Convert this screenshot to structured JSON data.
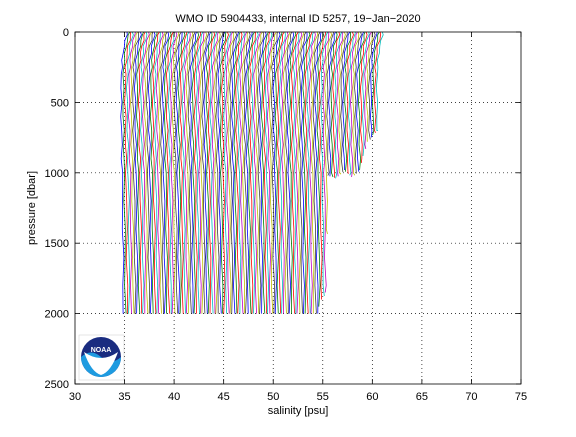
{
  "chart_data": {
    "type": "line",
    "title": "WMO ID 5904433, internal ID 5257, 19−Jan−2020",
    "xlabel": "salinity [psu]",
    "ylabel": "pressure [dbar]",
    "xlim": [
      30,
      75
    ],
    "ylim": [
      0,
      2500
    ],
    "y_reversed": true,
    "grid": true,
    "grid_style": "dotted",
    "x_ticks": [
      "30",
      "35",
      "40",
      "45",
      "50",
      "55",
      "60",
      "65",
      "70",
      "75"
    ],
    "y_ticks": [
      "0",
      "500",
      "1000",
      "1500",
      "2000",
      "2500"
    ],
    "profile_count": 130,
    "profile_offset_psu": 0.2,
    "base_salinity_psu": 35.0,
    "colors": [
      "#0000ff",
      "#008000",
      "#ff0000",
      "#00bfbf",
      "#bf00bf",
      "#bfbf00",
      "#404040"
    ],
    "template_profile": {
      "pressure": [
        0,
        20,
        60,
        100,
        150,
        200,
        250,
        300,
        400,
        500,
        600,
        700,
        800,
        900,
        1000,
        1200,
        1400,
        1600,
        1800,
        2000
      ],
      "salinity_anomaly": [
        0.25,
        0.22,
        0.1,
        -0.05,
        -0.15,
        -0.22,
        -0.28,
        -0.3,
        -0.33,
        -0.33,
        -0.32,
        -0.3,
        -0.28,
        -0.26,
        -0.24,
        -0.2,
        -0.17,
        -0.15,
        -0.13,
        -0.12
      ]
    },
    "profile_max_pressure": [
      {
        "index": 0,
        "pressure": 2000
      },
      {
        "index": 98,
        "pressure": 2000
      },
      {
        "index": 100,
        "pressure": 1900
      },
      {
        "index": 102,
        "pressure": 1850
      },
      {
        "index": 104,
        "pressure": 1020
      },
      {
        "index": 108,
        "pressure": 1040
      },
      {
        "index": 112,
        "pressure": 980
      },
      {
        "index": 116,
        "pressure": 1030
      },
      {
        "index": 120,
        "pressure": 980
      },
      {
        "index": 124,
        "pressure": 780
      },
      {
        "index": 129,
        "pressure": 700
      }
    ]
  },
  "logo": {
    "text": "NOAA"
  }
}
